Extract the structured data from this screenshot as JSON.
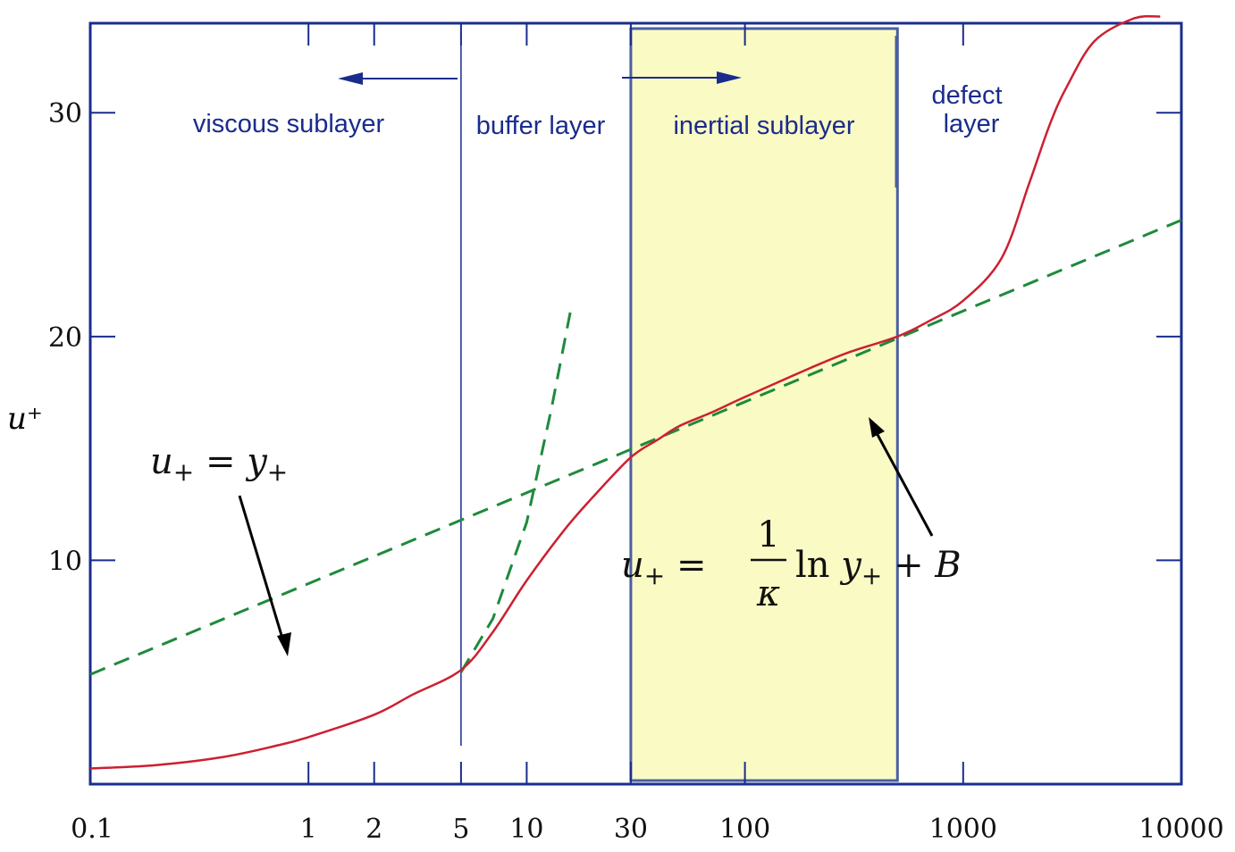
{
  "chart_data": {
    "type": "line",
    "x_scale": "log",
    "xlim": [
      0.1,
      10000
    ],
    "ylim": [
      0,
      34
    ],
    "x_ticks": [
      {
        "value": 0.1,
        "label": "0.1"
      },
      {
        "value": 1,
        "label": "1"
      },
      {
        "value": 2,
        "label": "2"
      },
      {
        "value": 5,
        "label": "5"
      },
      {
        "value": 10,
        "label": "10"
      },
      {
        "value": 30,
        "label": "30"
      },
      {
        "value": 100,
        "label": "100"
      },
      {
        "value": 1000,
        "label": "1000"
      },
      {
        "value": 10000,
        "label": "10000"
      }
    ],
    "y_ticks": [
      {
        "value": 10,
        "label": "10"
      },
      {
        "value": 20,
        "label": "20"
      },
      {
        "value": 30,
        "label": "30"
      }
    ],
    "ylabel": "u⁺",
    "grid": false,
    "series": [
      {
        "style": "solid",
        "color": "#cc2030",
        "x": [
          0.1,
          0.2,
          0.4,
          0.7,
          1,
          2,
          3,
          5,
          7,
          10,
          15,
          20,
          30,
          40,
          50,
          70,
          100,
          200,
          300,
          500,
          700,
          1000,
          1500,
          2000,
          2500,
          3000,
          4000,
          6000,
          8000
        ],
        "y": [
          0.7,
          0.85,
          1.2,
          1.7,
          2.1,
          3.1,
          4.0,
          5.1,
          6.8,
          9.1,
          11.4,
          12.8,
          14.6,
          15.4,
          16.0,
          16.6,
          17.3,
          18.6,
          19.3,
          20.0,
          20.7,
          21.6,
          23.5,
          26.8,
          29.5,
          31.2,
          33.2,
          34.2,
          34.3
        ]
      },
      {
        "style": "dashed",
        "color": "#1f8a3c",
        "x": [
          0.1,
          10000
        ],
        "y": [
          4.9,
          25.2
        ]
      },
      {
        "style": "dashed",
        "color": "#1f8a3c",
        "x": [
          5,
          7,
          10,
          13,
          16
        ],
        "y": [
          5,
          7.4,
          11.7,
          16.8,
          21.3
        ]
      }
    ],
    "vertical_lines": [
      {
        "x": 5,
        "color": "#1a2c8c"
      }
    ],
    "shaded_regions": [
      {
        "x": [
          30,
          500
        ],
        "color": "#fafac4",
        "border": "#4a5fa0"
      }
    ],
    "region_labels": {
      "viscous": "viscous sublayer",
      "buffer": "buffer layer",
      "inertial": "inertial sublayer",
      "defect_1": "defect",
      "defect_2": "layer"
    },
    "annotations": {
      "linear": {
        "lhs": "u",
        "sub1": "+",
        "eq": " = ",
        "rhs": "y",
        "sub2": "+"
      },
      "log": {
        "lhs": "u",
        "sub1": "+",
        "eq": " = ",
        "num": "1",
        "den": "κ",
        "ln": "ln ",
        "y": "y",
        "sub2": "+",
        "tail": " + B"
      }
    }
  }
}
